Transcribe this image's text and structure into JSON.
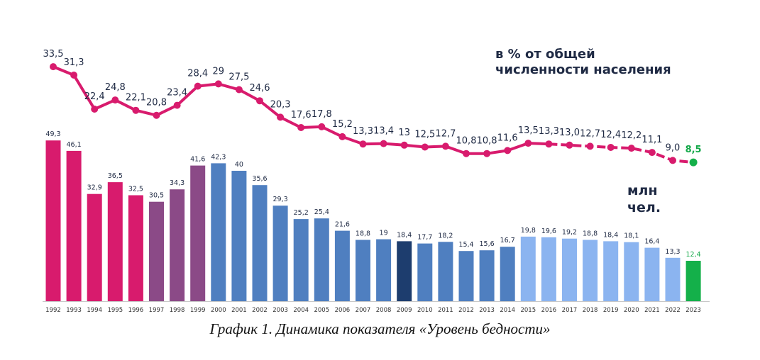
{
  "caption": "График 1. Динамика показателя «Уровень бедности»",
  "chart_data": {
    "type": "bar+line",
    "categories": [
      "1992",
      "1993",
      "1994",
      "1995",
      "1996",
      "1997",
      "1998",
      "1999",
      "2000",
      "2001",
      "2002",
      "2003",
      "2004",
      "2005",
      "2006",
      "2007",
      "2008",
      "2009",
      "2010",
      "2011",
      "2012",
      "2013",
      "2014",
      "2015",
      "2016",
      "2017",
      "2018",
      "2019",
      "2020",
      "2021",
      "2022",
      "2023"
    ],
    "bars": {
      "unit_label": [
        "млн",
        "чел."
      ],
      "values": [
        49.3,
        46.1,
        32.9,
        36.5,
        32.5,
        30.5,
        34.3,
        41.6,
        42.3,
        40,
        35.6,
        29.3,
        25.2,
        25.4,
        21.6,
        18.8,
        19,
        18.4,
        17.7,
        18.2,
        15.4,
        15.6,
        16.7,
        19.8,
        19.6,
        19.2,
        18.8,
        18.4,
        18.1,
        16.4,
        13.3,
        12.4
      ],
      "labels": [
        "49,3",
        "46,1",
        "32,9",
        "36,5",
        "32,5",
        "30,5",
        "34,3",
        "41,6",
        "42,3",
        "40",
        "35,6",
        "29,3",
        "25,2",
        "25,4",
        "21,6",
        "18,8",
        "19",
        "18,4",
        "17,7",
        "18,2",
        "15,4",
        "15,6",
        "16,7",
        "19,8",
        "19,6",
        "19,2",
        "18,8",
        "18,4",
        "18,1",
        "16,4",
        "13,3",
        "12,4"
      ],
      "colors": [
        "#d81b6d",
        "#d81b6d",
        "#d81b6d",
        "#d81b6d",
        "#d81b6d",
        "#8b4a87",
        "#8b4a87",
        "#8b4a87",
        "#4f7fc0",
        "#4f7fc0",
        "#4f7fc0",
        "#4f7fc0",
        "#4f7fc0",
        "#4f7fc0",
        "#4f7fc0",
        "#4f7fc0",
        "#4f7fc0",
        "#1d3d6e",
        "#4f7fc0",
        "#4f7fc0",
        "#4f7fc0",
        "#4f7fc0",
        "#4f7fc0",
        "#8bb4f0",
        "#8bb4f0",
        "#8bb4f0",
        "#8bb4f0",
        "#8bb4f0",
        "#8bb4f0",
        "#8bb4f0",
        "#8bb4f0",
        "#14b04a"
      ]
    },
    "line": {
      "unit_label": [
        "в % от общей",
        "численности населения"
      ],
      "values": [
        33.5,
        31.3,
        22.4,
        24.8,
        22.1,
        20.8,
        23.4,
        28.4,
        29,
        27.5,
        24.6,
        20.3,
        17.6,
        17.8,
        15.2,
        13.3,
        13.4,
        13,
        12.5,
        12.7,
        10.8,
        10.8,
        11.6,
        13.5,
        13.3,
        13.0,
        12.7,
        12.4,
        12.2,
        11.1,
        9.0,
        8.5
      ],
      "labels": [
        "33,5",
        "31,3",
        "22,4",
        "24,8",
        "22,1",
        "20,8",
        "23,4",
        "28,4",
        "29",
        "27,5",
        "24,6",
        "20,3",
        "17,6",
        "17,8",
        "15,2",
        "13,3",
        "13,4",
        "13",
        "12,5",
        "12,7",
        "10,8",
        "10,8",
        "11,6",
        "13,5",
        "13,3",
        "13,0",
        "12,7",
        "12,4",
        "12,2",
        "11,1",
        "9,0",
        "8,5"
      ],
      "color": "#d81b6d",
      "last_color": "#14b04a",
      "dashed_from_index": 24
    }
  }
}
